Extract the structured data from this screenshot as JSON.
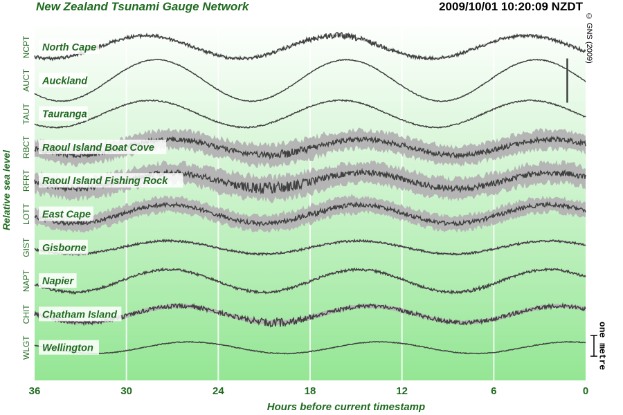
{
  "header": {
    "title": "New Zealand Tsunami Gauge Network",
    "timestamp": "2009/10/01 10:20:09 NZDT",
    "copyright": "© GNS (2009)"
  },
  "colors": {
    "title": "#1f6b1f",
    "trace": "#404040",
    "noise": "#b5b5b5",
    "background_top": "#ffffff",
    "background_bottom": "#94e694"
  },
  "chart_data": {
    "type": "line",
    "title": "New Zealand Tsunami Gauge Network",
    "xlabel": "Hours before current timestamp",
    "ylabel": "Relative sea level",
    "xlim": [
      36,
      0
    ],
    "x_reversed": true,
    "xticks": [
      36,
      30,
      24,
      18,
      12,
      6,
      0
    ],
    "grid": true,
    "scale_bar": {
      "label": "one metre",
      "metres": 1
    },
    "series": [
      {
        "code": "NCPT",
        "name": "North Cape",
        "amp": 0.55,
        "phase": -0.4,
        "noise": 0.08,
        "spread": 0.05,
        "burst_hours": [
          20,
          12
        ],
        "burst_gain": 2.0,
        "spike_hour": null
      },
      {
        "code": "AUCT",
        "name": "Auckland",
        "amp": 1.0,
        "phase": -0.05,
        "noise": 0.02,
        "spread": 0.0,
        "burst_hours": null,
        "burst_gain": 1,
        "spike_hour": 1.2
      },
      {
        "code": "TAUT",
        "name": "Tauranga",
        "amp": 0.65,
        "phase": -0.25,
        "noise": 0.03,
        "spread": 0.0,
        "burst_hours": null,
        "burst_gain": 1,
        "spike_hour": null
      },
      {
        "code": "RBCT",
        "name": "Raoul Island Boat Cove",
        "amp": 0.38,
        "phase": 0.45,
        "noise": 0.12,
        "spread": 0.55,
        "burst_hours": [
          22,
          17
        ],
        "burst_gain": 1.8,
        "spike_hour": null
      },
      {
        "code": "RFRT",
        "name": "Raoul Island Fishing Rock",
        "amp": 0.38,
        "phase": 0.45,
        "noise": 0.14,
        "spread": 0.6,
        "burst_hours": [
          24,
          17
        ],
        "burst_gain": 2.2,
        "spike_hour": null
      },
      {
        "code": "LOTT",
        "name": "East Cape",
        "amp": 0.45,
        "phase": 0.35,
        "noise": 0.1,
        "spread": 0.45,
        "burst_hours": [
          20,
          15
        ],
        "burst_gain": 1.6,
        "spike_hour": null
      },
      {
        "code": "GIST",
        "name": "Gisborne",
        "amp": 0.32,
        "phase": 0.35,
        "noise": 0.05,
        "spread": 0.05,
        "burst_hours": null,
        "burst_gain": 1,
        "spike_hour": null
      },
      {
        "code": "NAPT",
        "name": "Napier",
        "amp": 0.55,
        "phase": 0.35,
        "noise": 0.06,
        "spread": 0.04,
        "burst_hours": [
          9,
          5
        ],
        "burst_gain": 1.6,
        "spike_hour": null
      },
      {
        "code": "CHIT",
        "name": "Chatham Island",
        "amp": 0.4,
        "phase": 0.7,
        "noise": 0.1,
        "spread": 0.12,
        "burst_hours": [
          23,
          17
        ],
        "burst_gain": 2.2,
        "spike_hour": null
      },
      {
        "code": "WLGT",
        "name": "Wellington",
        "amp": 0.28,
        "phase": 1.05,
        "noise": 0.02,
        "spread": 0.0,
        "burst_hours": null,
        "burst_gain": 1,
        "spike_hour": null
      }
    ]
  }
}
